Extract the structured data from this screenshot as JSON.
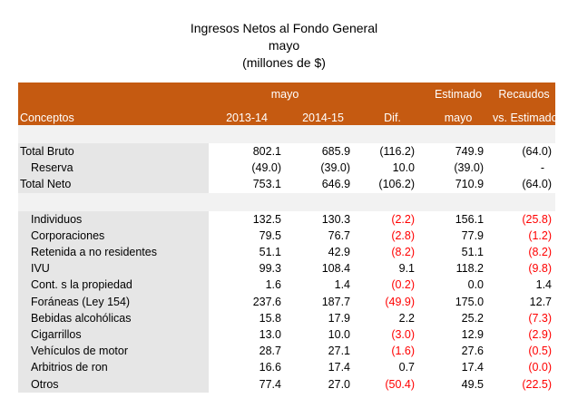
{
  "title": {
    "line1": "Ingresos Netos al Fondo General",
    "line2": "mayo",
    "line3": "(millones de $)"
  },
  "header": {
    "row1": {
      "mayo": "mayo",
      "estimado": "Estimado",
      "recaudos": "Recaudos"
    },
    "row2": {
      "conceptos": "Conceptos",
      "y1": "2013-14",
      "y2": "2014-15",
      "dif": "Dif.",
      "mayo": "mayo",
      "vs_estimado": "vs. Estimado"
    }
  },
  "rows": [
    {
      "label": "Total Bruto",
      "y1": "802.1",
      "y2": "685.9",
      "dif": "(116.2)",
      "est": "749.9",
      "vs": "(64.0)"
    },
    {
      "label": "Reserva",
      "y1": "(49.0)",
      "y2": "(39.0)",
      "dif": "10.0",
      "est": "(39.0)",
      "vs": "-"
    },
    {
      "label": "Total Neto",
      "y1": "753.1",
      "y2": "646.9",
      "dif": "(106.2)",
      "est": "710.9",
      "vs": "(64.0)"
    },
    {
      "label": "Individuos",
      "y1": "132.5",
      "y2": "130.3",
      "dif": "(2.2)",
      "est": "156.1",
      "vs": "(25.8)"
    },
    {
      "label": "Corporaciones",
      "y1": "79.5",
      "y2": "76.7",
      "dif": "(2.8)",
      "est": "77.9",
      "vs": "(1.2)"
    },
    {
      "label": "Retenida a no residentes",
      "y1": "51.1",
      "y2": "42.9",
      "dif": "(8.2)",
      "est": "51.1",
      "vs": "(8.2)"
    },
    {
      "label": "IVU",
      "y1": "99.3",
      "y2": "108.4",
      "dif": "9.1",
      "est": "118.2",
      "vs": "(9.8)"
    },
    {
      "label": "Cont. s la propiedad",
      "y1": "1.6",
      "y2": "1.4",
      "dif": "(0.2)",
      "est": "0.0",
      "vs": "1.4"
    },
    {
      "label": "Foráneas (Ley 154)",
      "y1": "237.6",
      "y2": "187.7",
      "dif": "(49.9)",
      "est": "175.0",
      "vs": "12.7"
    },
    {
      "label": "Bebidas alcohólicas",
      "y1": "15.8",
      "y2": "17.9",
      "dif": "2.2",
      "est": "25.2",
      "vs": "(7.3)"
    },
    {
      "label": "Cigarrillos",
      "y1": "13.0",
      "y2": "10.0",
      "dif": "(3.0)",
      "est": "12.9",
      "vs": "(2.9)"
    },
    {
      "label": "Vehículos de motor",
      "y1": "28.7",
      "y2": "27.1",
      "dif": "(1.6)",
      "est": "27.6",
      "vs": "(0.5)"
    },
    {
      "label": "Arbitrios de ron",
      "y1": "16.6",
      "y2": "17.4",
      "dif": "0.7",
      "est": "17.4",
      "vs": "(0.0)"
    },
    {
      "label": "Otros",
      "y1": "77.4",
      "y2": "27.0",
      "dif": "(50.4)",
      "est": "49.5",
      "vs": "(22.5)"
    }
  ],
  "colors": {
    "header_bg": "#c55a11",
    "header_text": "#ffffff",
    "negative": "#ff0000",
    "label_bg": "#e6e6e6"
  }
}
